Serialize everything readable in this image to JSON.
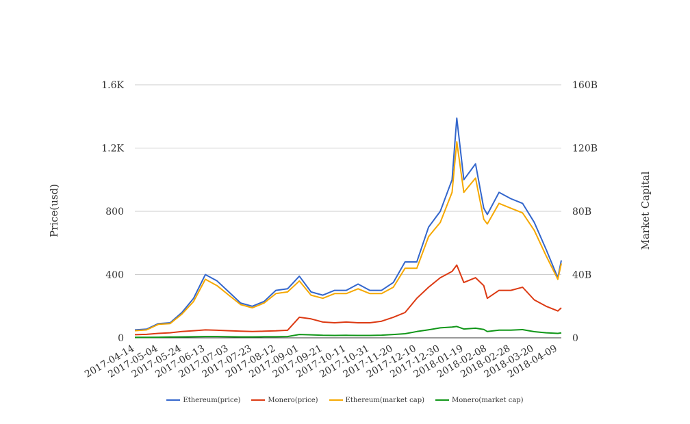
{
  "chart_data": {
    "type": "line",
    "title": "",
    "ylabel": "Price(usd)",
    "ylabel_right": "Market Capital",
    "ylim": [
      0,
      1600
    ],
    "ylim_right": [
      0,
      160000000000
    ],
    "y_ticks_left": [
      "0",
      "400",
      "800",
      "1.2K",
      "1.6K"
    ],
    "y_ticks_right": [
      "0",
      "40B",
      "80B",
      "120B",
      "160B"
    ],
    "x_tick_labels": [
      "2017-04-14",
      "2017-05-04",
      "2017-05-24",
      "2017-06-13",
      "2017-07-03",
      "2017-07-23",
      "2017-08-12",
      "2017-09-01",
      "2017-09-21",
      "2017-10-11",
      "2017-10-31",
      "2017-11-20",
      "2017-12-10",
      "2017-12-30",
      "2018-01-19",
      "2018-02-08",
      "2018-02-28",
      "2018-03-20",
      "2018-04-09"
    ],
    "grid": true,
    "legend_position": "bottom",
    "x": [
      "2017-04-14",
      "2017-04-24",
      "2017-05-04",
      "2017-05-14",
      "2017-05-24",
      "2017-06-03",
      "2017-06-13",
      "2017-06-23",
      "2017-07-03",
      "2017-07-13",
      "2017-07-23",
      "2017-08-02",
      "2017-08-12",
      "2017-08-22",
      "2017-09-01",
      "2017-09-11",
      "2017-09-21",
      "2017-10-01",
      "2017-10-11",
      "2017-10-21",
      "2017-10-31",
      "2017-11-10",
      "2017-11-20",
      "2017-11-30",
      "2017-12-10",
      "2017-12-20",
      "2017-12-30",
      "2018-01-09",
      "2018-01-13",
      "2018-01-19",
      "2018-01-29",
      "2018-02-05",
      "2018-02-08",
      "2018-02-18",
      "2018-02-28",
      "2018-03-10",
      "2018-03-20",
      "2018-03-30",
      "2018-04-09",
      "2018-04-12"
    ],
    "series": [
      {
        "name": "Ethereum(price)",
        "axis": "left",
        "color": "#3366cc",
        "values": [
          50,
          55,
          90,
          95,
          160,
          250,
          400,
          360,
          290,
          220,
          200,
          230,
          300,
          310,
          390,
          290,
          270,
          300,
          300,
          340,
          300,
          300,
          350,
          480,
          480,
          700,
          800,
          1000,
          1390,
          1000,
          1100,
          820,
          780,
          920,
          880,
          850,
          730,
          560,
          380,
          490
        ]
      },
      {
        "name": "Monero(price)",
        "axis": "left",
        "color": "#dc3912",
        "values": [
          20,
          22,
          28,
          32,
          40,
          45,
          50,
          48,
          45,
          42,
          40,
          42,
          44,
          48,
          130,
          120,
          100,
          95,
          100,
          95,
          95,
          105,
          130,
          160,
          250,
          320,
          380,
          420,
          460,
          350,
          380,
          330,
          250,
          300,
          300,
          320,
          240,
          200,
          170,
          190
        ]
      },
      {
        "name": "Ethereum(market cap)",
        "axis": "right",
        "color": "#f5a800",
        "values": [
          4.5,
          5,
          8.5,
          9,
          15,
          23,
          37,
          33,
          27,
          21,
          19,
          22,
          28,
          29,
          36,
          27,
          25,
          28,
          28,
          31,
          28,
          28,
          32,
          44,
          44,
          64,
          73,
          92,
          124,
          92,
          101,
          75,
          72,
          85,
          82,
          79,
          68,
          52,
          37,
          47
        ]
      },
      {
        "name": "Monero(market cap)",
        "axis": "right",
        "color": "#109618",
        "values": [
          0.3,
          0.3,
          0.4,
          0.5,
          0.6,
          0.7,
          0.8,
          0.8,
          0.7,
          0.6,
          0.6,
          0.7,
          0.7,
          0.8,
          2.1,
          1.9,
          1.6,
          1.5,
          1.6,
          1.5,
          1.5,
          1.7,
          2.1,
          2.6,
          4,
          5.1,
          6.3,
          6.8,
          7.2,
          5.6,
          6.1,
          5.3,
          4,
          4.9,
          4.9,
          5.2,
          3.9,
          3.2,
          2.8,
          3.1
        ]
      }
    ],
    "value_units": {
      "left": "usd",
      "right": "billions"
    }
  }
}
